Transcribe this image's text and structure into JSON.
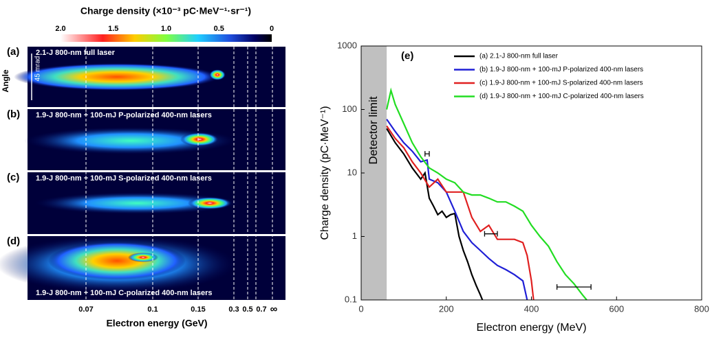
{
  "chart_data": [
    {
      "type": "image",
      "colorbar_title": "Charge density (×10⁻³ pC·MeV⁻¹·sr⁻¹)",
      "clim": [
        2,
        0
      ],
      "cticks": [
        {
          "value": 2,
          "label": "2.0"
        },
        1.5,
        {
          "value": 1,
          "label": "1.0"
        },
        0.5,
        0
      ],
      "panels": [
        {
          "label": "(a)",
          "text": "2.1-J 800-nm full laser"
        },
        {
          "label": "(b)",
          "text": "1.9-J 800-nm + 100-mJ P-polarized 400-nm lasers"
        },
        {
          "label": "(c)",
          "text": "1.9-J 800-nm + 100-mJ S-polarized 400-nm lasers"
        },
        {
          "label": "(d)",
          "text": "1.9-J 800-nm + 100-mJ C-polarized 400-nm lasers"
        }
      ],
      "ylabel": "Angle",
      "scale_bar": "45 mrad",
      "xtick_labels": [
        "0.07",
        "0.1",
        "0.15",
        "0.3",
        "0.5",
        "0.7",
        "∞"
      ],
      "xlabel": "Electron energy (GeV)"
    },
    {
      "type": "line",
      "panel_label": "(e)",
      "xlabel": "Electron energy (MeV)",
      "ylabel": "Charge density (pC·MeV⁻¹)",
      "xlim": [
        0,
        800
      ],
      "xticks": [
        0,
        200,
        400,
        600,
        800
      ],
      "ylim": [
        0.1,
        1000
      ],
      "yticks": [
        0.1,
        1,
        10,
        100,
        1000
      ],
      "yscale": "log",
      "shaded": {
        "x": [
          0,
          60
        ],
        "label": "Detector limit",
        "color": "#c0c0c0"
      },
      "legend": "upper right",
      "series": [
        {
          "name": "(a) 2.1-J 800-nm full laser",
          "color": "#000000",
          "x": [
            60,
            80,
            100,
            120,
            140,
            150,
            160,
            170,
            180,
            190,
            200,
            210,
            220,
            230,
            240,
            250,
            260,
            270,
            280,
            285
          ],
          "values": [
            50,
            30,
            20,
            12,
            8,
            10,
            4,
            3,
            2.2,
            2.5,
            2,
            2.2,
            2.3,
            1,
            0.6,
            0.4,
            0.25,
            0.17,
            0.12,
            0.1
          ]
        },
        {
          "name": "(b) 1.9-J 800-nm + 100-mJ P-polarized 400-nm lasers",
          "color": "#1f1fd6",
          "x": [
            60,
            80,
            100,
            120,
            140,
            155,
            160,
            180,
            200,
            220,
            240,
            260,
            280,
            300,
            320,
            340,
            360,
            380,
            390
          ],
          "values": [
            70,
            45,
            30,
            22,
            15,
            16,
            8,
            7,
            5,
            2.5,
            1.2,
            0.8,
            0.6,
            0.45,
            0.35,
            0.3,
            0.25,
            0.2,
            0.1
          ]
        },
        {
          "name": "(c) 1.9-J 800-nm + 100-mJ S-polarized 400-nm lasers",
          "color": "#e02020",
          "x": [
            60,
            80,
            100,
            120,
            140,
            160,
            180,
            200,
            220,
            240,
            260,
            280,
            300,
            320,
            340,
            360,
            380,
            390,
            400,
            405
          ],
          "values": [
            55,
            35,
            25,
            15,
            10,
            6,
            8,
            5,
            5,
            5,
            2,
            1.2,
            1.5,
            0.9,
            0.9,
            0.9,
            0.8,
            0.5,
            0.2,
            0.1
          ]
        },
        {
          "name": "(d) 1.9-J 800-nm + 100-mJ C-polarized 400-nm lasers",
          "color": "#22dd22",
          "x": [
            60,
            70,
            80,
            100,
            120,
            140,
            160,
            180,
            200,
            220,
            240,
            260,
            280,
            300,
            320,
            340,
            360,
            380,
            400,
            420,
            440,
            460,
            480,
            500,
            520,
            530
          ],
          "values": [
            100,
            200,
            120,
            60,
            30,
            18,
            12,
            10,
            8,
            7,
            5,
            4.5,
            4.5,
            4,
            3.5,
            3.5,
            3,
            2.5,
            1.5,
            1,
            0.7,
            0.4,
            0.25,
            0.18,
            0.12,
            0.1
          ]
        }
      ],
      "error_bars": [
        {
          "x": 155,
          "y": 20,
          "xerr": 5
        },
        {
          "x": 305,
          "y": 1.1,
          "xerr": 15
        },
        {
          "x": 500,
          "y": 0.16,
          "xerr": 40
        }
      ]
    }
  ]
}
